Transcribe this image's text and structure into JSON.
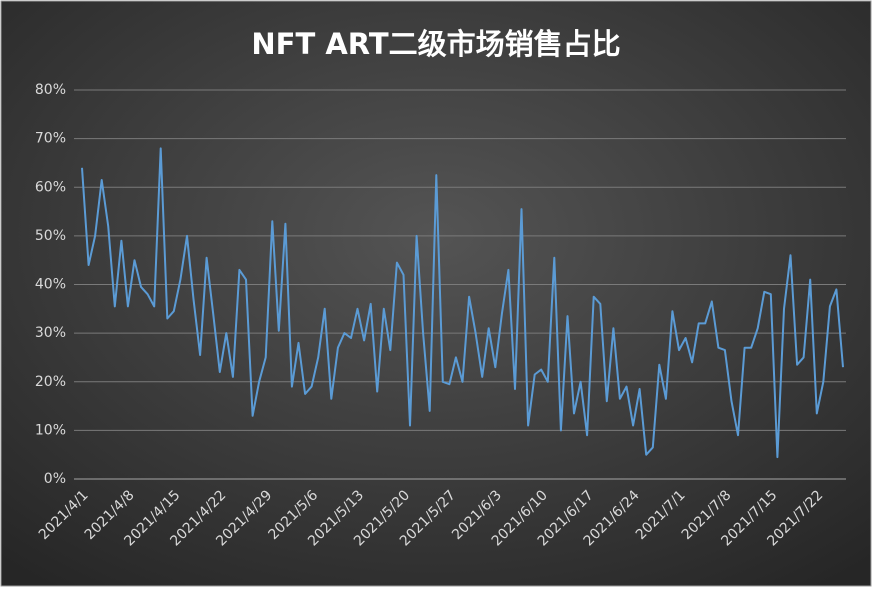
{
  "chart_data": {
    "type": "line",
    "title": "NFT ART二级市场销售占比",
    "categories": [
      "2021/4/1",
      null,
      null,
      null,
      null,
      null,
      null,
      "2021/4/8",
      null,
      null,
      null,
      null,
      null,
      null,
      "2021/4/15",
      null,
      null,
      null,
      null,
      null,
      null,
      "2021/4/22",
      null,
      null,
      null,
      null,
      null,
      null,
      "2021/4/29",
      null,
      null,
      null,
      null,
      null,
      null,
      "2021/5/6",
      null,
      null,
      null,
      null,
      null,
      null,
      "2021/5/13",
      null,
      null,
      null,
      null,
      null,
      null,
      "2021/5/20",
      null,
      null,
      null,
      null,
      null,
      null,
      "2021/5/27",
      null,
      null,
      null,
      null,
      null,
      null,
      "2021/6/3",
      null,
      null,
      null,
      null,
      null,
      null,
      "2021/6/10",
      null,
      null,
      null,
      null,
      null,
      null,
      "2021/6/17",
      null,
      null,
      null,
      null,
      null,
      null,
      "2021/6/24",
      null,
      null,
      null,
      null,
      null,
      null,
      "2021/7/1",
      null,
      null,
      null,
      null,
      null,
      null,
      "2021/7/8",
      null,
      null,
      null,
      null,
      null,
      null,
      "2021/7/15",
      null,
      null,
      null,
      null,
      null,
      null,
      "2021/7/22",
      null,
      null,
      null,
      null
    ],
    "values": [
      64,
      44,
      50,
      61.5,
      52,
      35.5,
      49,
      35.5,
      45,
      39.5,
      38,
      35.5,
      68,
      33,
      34.5,
      41,
      50,
      37,
      25.5,
      45.5,
      34,
      22,
      30,
      21,
      43,
      41,
      13,
      20,
      25,
      53,
      30.5,
      52.5,
      19,
      28,
      17.5,
      19,
      25,
      35,
      16.5,
      27,
      30,
      29,
      35,
      28.5,
      36,
      18,
      35,
      26.5,
      44.5,
      42,
      11,
      50,
      30,
      14,
      62.5,
      20,
      19.5,
      25,
      20,
      37.5,
      30,
      21,
      31,
      23,
      34,
      43,
      18.5,
      55.5,
      11,
      21.5,
      22.5,
      20,
      45.5,
      10,
      33.5,
      13.5,
      20,
      9,
      37.5,
      36,
      16,
      31,
      16.5,
      19,
      11,
      18.5,
      5,
      6.5,
      23.5,
      16.5,
      34.5,
      26.5,
      29,
      24,
      32,
      32,
      36.5,
      27,
      26.5,
      16,
      9,
      27,
      27,
      31,
      38.5,
      38,
      4.5,
      35,
      46,
      23.5,
      25,
      41,
      13.5,
      20,
      35.5,
      39,
      23
    ],
    "color": "#5b9bd5",
    "ylim": [
      0,
      80
    ],
    "yticks": [
      {
        "value": 0,
        "label": "0%"
      },
      {
        "value": 10,
        "label": "10%"
      },
      {
        "value": 20,
        "label": "20%"
      },
      {
        "value": 30,
        "label": "30%"
      },
      {
        "value": 40,
        "label": "40%"
      },
      {
        "value": 50,
        "label": "50%"
      },
      {
        "value": 60,
        "label": "60%"
      },
      {
        "value": 70,
        "label": "70%"
      },
      {
        "value": 80,
        "label": "80%"
      }
    ],
    "grid": true
  }
}
